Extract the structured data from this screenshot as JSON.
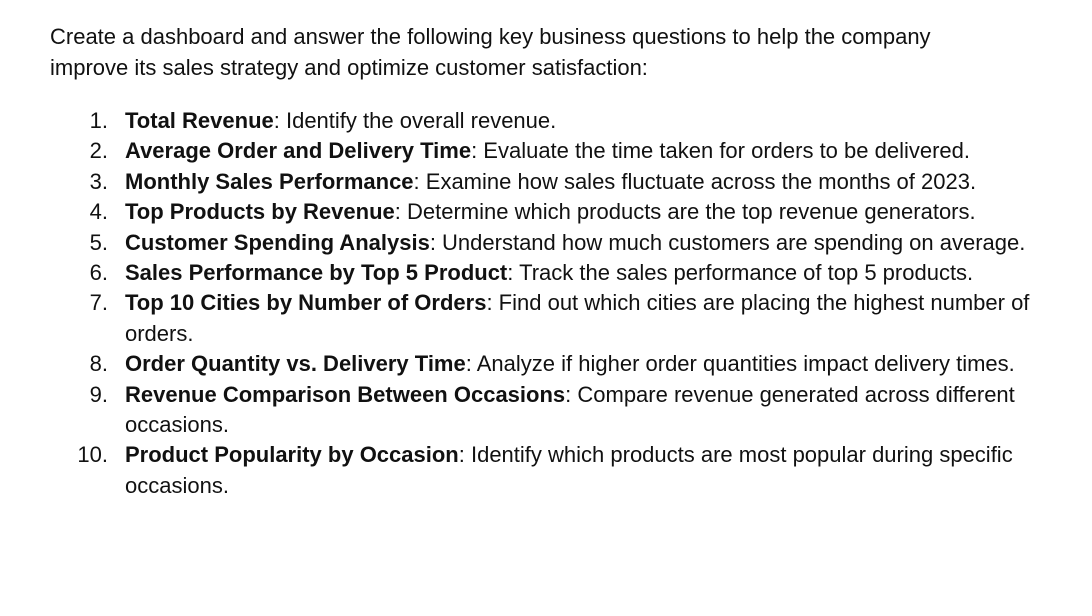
{
  "intro": "Create a dashboard and answer the following key business questions to help the company improve its sales strategy and optimize customer satisfaction:",
  "questions": [
    {
      "number": "1.",
      "title": "Total Revenue",
      "description": ": Identify the overall revenue."
    },
    {
      "number": "2.",
      "title": "Average Order and Delivery Time",
      "description": ": Evaluate the time taken for orders to be delivered."
    },
    {
      "number": "3.",
      "title": "Monthly Sales Performance",
      "description": ": Examine how sales fluctuate across the months of 2023."
    },
    {
      "number": "4.",
      "title": "Top Products by Revenue",
      "description": ": Determine which products are the top revenue generators."
    },
    {
      "number": "5.",
      "title": "Customer Spending Analysis",
      "description": ": Understand how much customers are spending on average."
    },
    {
      "number": "6.",
      "title": "Sales Performance by Top 5 Product",
      "description": ": Track the sales performance of top 5 products."
    },
    {
      "number": "7.",
      "title": "Top 10 Cities by Number of Orders",
      "description": ": Find out which cities are placing the highest number of orders."
    },
    {
      "number": "8.",
      "title": "Order Quantity vs. Delivery Time",
      "description": ": Analyze if higher order quantities impact delivery times."
    },
    {
      "number": "9.",
      "title": "Revenue Comparison Between Occasions",
      "description": ": Compare revenue generated across different occasions."
    },
    {
      "number": "10.",
      "title": "Product Popularity by Occasion",
      "description": ": Identify which products are most popular during specific occasions."
    }
  ]
}
